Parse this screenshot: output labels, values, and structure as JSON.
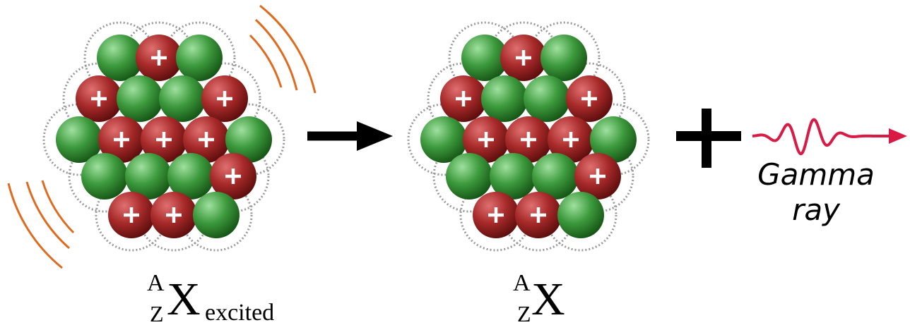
{
  "left_nucleus": {
    "label": {
      "mass_number": "A",
      "atomic_number": "Z",
      "symbol": "X",
      "state": "excited"
    }
  },
  "right_nucleus": {
    "label": {
      "mass_number": "A",
      "atomic_number": "Z",
      "symbol": "X"
    }
  },
  "gamma_ray": {
    "label": [
      "Gamma",
      "ray"
    ]
  }
}
